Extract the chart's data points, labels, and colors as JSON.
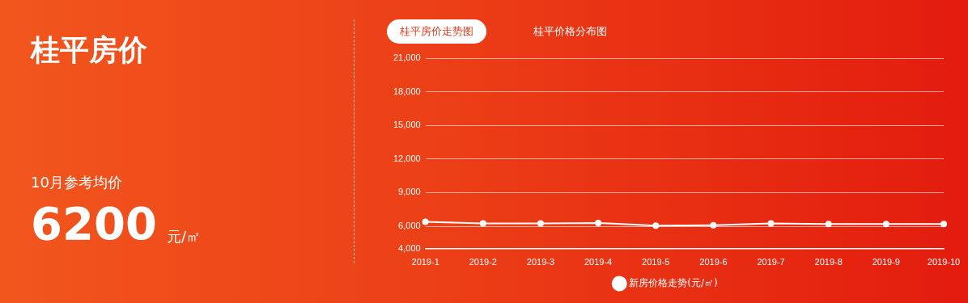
{
  "chart_data": {
    "type": "line",
    "title": "桂平房价",
    "annotations": [
      "10月参考均价",
      "6200",
      "元/㎡",
      "桂平房价走势图",
      "桂平价格分布图"
    ],
    "categories": [
      "2019-1",
      "2019-2",
      "2019-3",
      "2019-4",
      "2019-5",
      "2019-6",
      "2019-7",
      "2019-8",
      "2019-9",
      "2019-10"
    ],
    "series": [
      {
        "name": "新房价格走势(元/㎡)",
        "color": "#ffffff",
        "values": [
          6400,
          6250,
          6250,
          6300,
          6050,
          6100,
          6250,
          6200,
          6200,
          6200
        ]
      }
    ],
    "ylim": [
      4000,
      21000
    ],
    "yticks": [
      {
        "value": 4000,
        "label": "4,000"
      },
      {
        "value": 6000,
        "label": "6,000"
      },
      {
        "value": 9000,
        "label": "9,000"
      },
      {
        "value": 12000,
        "label": "12,000"
      },
      {
        "value": 15000,
        "label": "15,000"
      },
      {
        "value": 18000,
        "label": "18,000"
      },
      {
        "value": 21000,
        "label": "21,000"
      }
    ],
    "grid": "y",
    "legend": "bottom",
    "marker": "circle",
    "line_style": "solid"
  }
}
